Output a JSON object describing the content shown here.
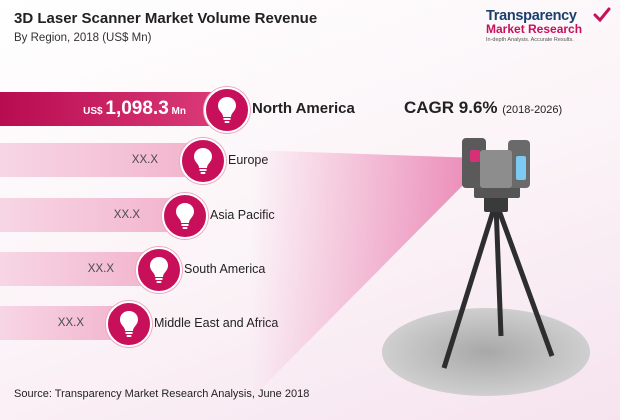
{
  "colors": {
    "accent": "#c8105a",
    "light_bar": "#f4c4d7",
    "logo_blue": "#1a3f6d"
  },
  "header": {
    "title": "3D Laser Scanner Market Volume Revenue",
    "subtitle": "By Region, 2018 (US$ Mn)"
  },
  "logo": {
    "line1": "Transparency",
    "line2": "Market Research",
    "tagline": "In-depth Analysis. Accurate Results."
  },
  "cagr": {
    "label": "CAGR 9.6%",
    "period": "(2018-2026)"
  },
  "chart_data": {
    "type": "bar",
    "orientation": "horizontal",
    "title": "3D Laser Scanner Market Volume Revenue",
    "subtitle": "By Region, 2018 (US$ Mn)",
    "categories": [
      "North America",
      "Europe",
      "Asia Pacific",
      "South America",
      "Middle East and Africa"
    ],
    "value_labels": [
      {
        "prefix": "US$",
        "value": "1,098.3",
        "unit": "Mn"
      },
      {
        "prefix": "",
        "value": "XX.X",
        "unit": ""
      },
      {
        "prefix": "",
        "value": "XX.X",
        "unit": ""
      },
      {
        "prefix": "",
        "value": "XX.X",
        "unit": ""
      },
      {
        "prefix": "",
        "value": "XX.X",
        "unit": ""
      }
    ],
    "values": [
      1098.3,
      null,
      null,
      null,
      null
    ],
    "icon": "lightbulb-icon"
  },
  "footer": {
    "source": "Source:  Transparency Market Research Analysis, June 2018"
  }
}
